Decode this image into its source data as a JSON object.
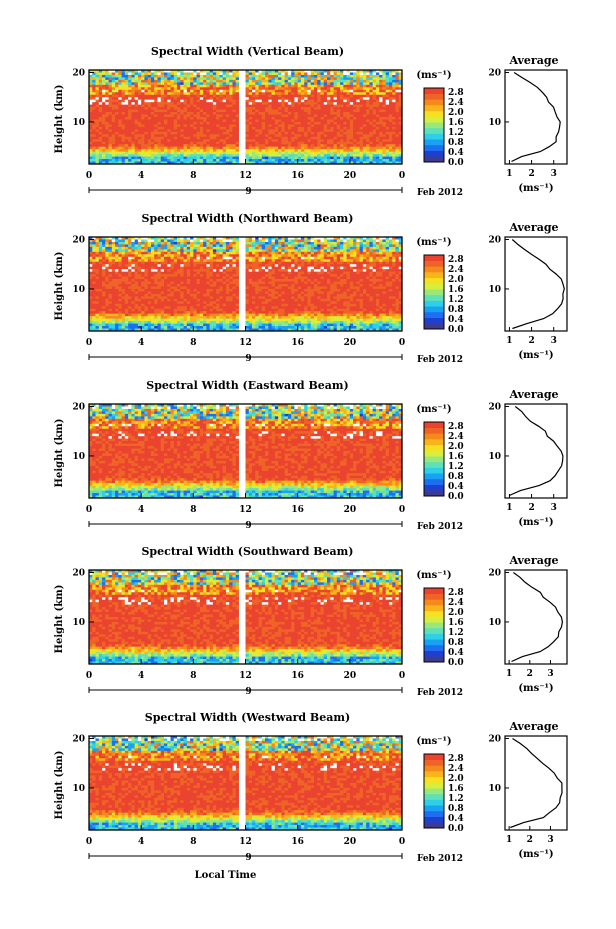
{
  "figure": {
    "xlabel": "Local Time",
    "date_label": "Feb 2012",
    "day_label": "9",
    "avg_title": "Average",
    "unit_label": "(ms⁻¹)"
  },
  "colorbar": {
    "ticks": [
      "2.8",
      "2.4",
      "2.0",
      "1.6",
      "1.2",
      "0.8",
      "0.4",
      "0.0"
    ],
    "colors": [
      "#3b3b8f",
      "#1f3fd0",
      "#1c6ff0",
      "#19a2f3",
      "#2dd0e6",
      "#5fe0b8",
      "#9ae87a",
      "#d8ee3c",
      "#f6e021",
      "#f8b419",
      "#f48a1c",
      "#ef6426",
      "#ea4430"
    ]
  },
  "chart_data": [
    {
      "type": "heatmap",
      "title": "Spectral Width (Vertical Beam)",
      "xlabel": "",
      "ylabel": "Height (km)",
      "xlim": [
        0,
        24
      ],
      "ylim": [
        1.5,
        20.5
      ],
      "xticks": [
        "0",
        "4",
        "8",
        "12",
        "16",
        "20",
        "0"
      ],
      "yticks": [
        "20",
        "10"
      ],
      "colorbar_range": [
        0.0,
        2.9
      ],
      "average_profile": {
        "xlabel": "(ms⁻¹)",
        "xticks": [
          "1",
          "2",
          "3"
        ],
        "xlim": [
          0.8,
          3.6
        ],
        "height_km": [
          2,
          3,
          4,
          5,
          6,
          7,
          8,
          9,
          10,
          11,
          12,
          13,
          14,
          15,
          16,
          17,
          18,
          19,
          20
        ],
        "value": [
          1.05,
          1.6,
          2.4,
          2.85,
          3.05,
          3.15,
          3.2,
          3.25,
          3.3,
          3.2,
          3.1,
          3.0,
          2.75,
          2.65,
          2.5,
          2.2,
          1.9,
          1.55,
          1.25
        ]
      }
    },
    {
      "type": "heatmap",
      "title": "Spectral Width (Northward Beam)",
      "xlabel": "",
      "ylabel": "Height (km)",
      "xlim": [
        0,
        24
      ],
      "ylim": [
        1.5,
        20.5
      ],
      "xticks": [
        "0",
        "4",
        "8",
        "12",
        "16",
        "20",
        "0"
      ],
      "yticks": [
        "20",
        "10"
      ],
      "colorbar_range": [
        0.0,
        2.9
      ],
      "average_profile": {
        "xlabel": "(ms⁻¹)",
        "xticks": [
          "1",
          "2",
          "3"
        ],
        "xlim": [
          0.8,
          3.6
        ],
        "height_km": [
          2,
          3,
          4,
          5,
          6,
          7,
          8,
          9,
          10,
          11,
          12,
          13,
          14,
          15,
          16,
          17,
          18,
          19,
          20
        ],
        "value": [
          1.1,
          1.8,
          2.6,
          3.0,
          3.2,
          3.35,
          3.4,
          3.45,
          3.5,
          3.45,
          3.3,
          3.1,
          2.85,
          2.6,
          2.3,
          2.0,
          1.7,
          1.4,
          1.1
        ]
      }
    },
    {
      "type": "heatmap",
      "title": "Spectral Width (Eastward Beam)",
      "xlabel": "",
      "ylabel": "Height (km)",
      "xlim": [
        0,
        24
      ],
      "ylim": [
        1.5,
        20.5
      ],
      "xticks": [
        "0",
        "4",
        "8",
        "12",
        "16",
        "20",
        "0"
      ],
      "yticks": [
        "20",
        "10"
      ],
      "colorbar_range": [
        0.0,
        2.9
      ],
      "average_profile": {
        "xlabel": "(ms⁻¹)",
        "xticks": [
          "1",
          "2",
          "3"
        ],
        "xlim": [
          0.8,
          3.6
        ],
        "height_km": [
          2,
          3,
          4,
          5,
          6,
          7,
          8,
          9,
          10,
          11,
          12,
          13,
          14,
          15,
          16,
          17,
          18,
          19,
          20
        ],
        "value": [
          1.05,
          1.5,
          2.3,
          2.8,
          3.05,
          3.2,
          3.3,
          3.35,
          3.4,
          3.3,
          3.15,
          3.0,
          2.7,
          2.6,
          2.3,
          2.0,
          1.7,
          1.5,
          1.3
        ]
      }
    },
    {
      "type": "heatmap",
      "title": "Spectral Width (Southward Beam)",
      "xlabel": "",
      "ylabel": "Height (km)",
      "xlim": [
        0,
        24
      ],
      "ylim": [
        1.5,
        20.5
      ],
      "xticks": [
        "0",
        "4",
        "8",
        "12",
        "16",
        "20",
        "0"
      ],
      "yticks": [
        "20",
        "10"
      ],
      "colorbar_range": [
        0.0,
        2.9
      ],
      "average_profile": {
        "xlabel": "(ms⁻¹)",
        "xticks": [
          "1",
          "2",
          "3"
        ],
        "xlim": [
          0.8,
          3.8
        ],
        "height_km": [
          2,
          3,
          4,
          5,
          6,
          7,
          8,
          9,
          10,
          11,
          12,
          13,
          14,
          15,
          16,
          17,
          18,
          19,
          20
        ],
        "value": [
          1.1,
          1.7,
          2.5,
          2.95,
          3.2,
          3.35,
          3.45,
          3.5,
          3.6,
          3.55,
          3.4,
          3.2,
          2.95,
          2.7,
          2.45,
          2.1,
          1.8,
          1.5,
          1.2
        ]
      }
    },
    {
      "type": "heatmap",
      "title": "Spectral Width (Westward Beam)",
      "xlabel": "Local Time",
      "ylabel": "Height (km)",
      "xlim": [
        0,
        24
      ],
      "ylim": [
        1.5,
        20.5
      ],
      "xticks": [
        "0",
        "4",
        "8",
        "12",
        "16",
        "20",
        "0"
      ],
      "yticks": [
        "20",
        "10"
      ],
      "colorbar_range": [
        0.0,
        2.9
      ],
      "average_profile": {
        "xlabel": "(ms⁻¹)",
        "xticks": [
          "1",
          "2",
          "3"
        ],
        "xlim": [
          0.8,
          3.8
        ],
        "height_km": [
          2,
          3,
          4,
          5,
          6,
          7,
          8,
          9,
          10,
          11,
          12,
          13,
          14,
          15,
          16,
          17,
          18,
          19,
          20
        ],
        "value": [
          1.1,
          1.7,
          2.6,
          3.0,
          3.25,
          3.4,
          3.5,
          3.55,
          3.6,
          3.5,
          3.35,
          3.15,
          2.9,
          2.65,
          2.4,
          2.1,
          1.8,
          1.5,
          1.2
        ]
      }
    }
  ]
}
